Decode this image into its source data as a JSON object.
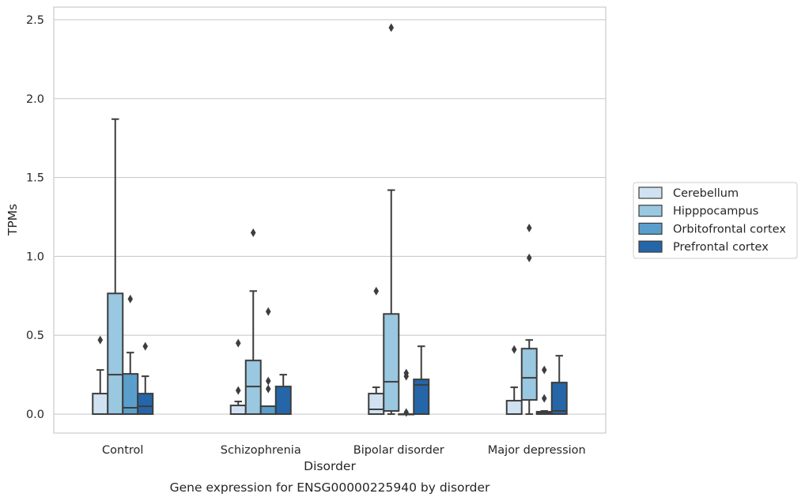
{
  "chart_data": {
    "type": "box",
    "title": "",
    "caption": "Gene expression for ENSG00000225940 by disorder",
    "xlabel": "Disorder",
    "ylabel": "TPMs",
    "ylim": [
      -0.12,
      2.58
    ],
    "yticks": [
      0.0,
      0.5,
      1.0,
      1.5,
      2.0,
      2.5
    ],
    "ytick_labels": [
      "0.0",
      "0.5",
      "1.0",
      "1.5",
      "2.0",
      "2.5"
    ],
    "categories": [
      "Control",
      "Schizophrenia",
      "Bipolar disorder",
      "Major depression"
    ],
    "grid": "horizontal",
    "legend_position": "right",
    "series": [
      {
        "name": "Cerebellum",
        "color": "#d0e2f2",
        "boxes": [
          {
            "min": 0.0,
            "q1": 0.0,
            "median": 0.0,
            "q3": 0.13,
            "max": 0.28,
            "outliers": [
              0.47
            ]
          },
          {
            "min": 0.0,
            "q1": 0.0,
            "median": 0.0,
            "q3": 0.055,
            "max": 0.08,
            "outliers": [
              0.15,
              0.45
            ]
          },
          {
            "min": 0.0,
            "q1": 0.0,
            "median": 0.03,
            "q3": 0.13,
            "max": 0.17,
            "outliers": [
              0.78
            ]
          },
          {
            "min": 0.0,
            "q1": 0.0,
            "median": 0.0,
            "q3": 0.085,
            "max": 0.17,
            "outliers": [
              0.41
            ]
          }
        ]
      },
      {
        "name": "Hipppocampus",
        "color": "#9ac8e0",
        "boxes": [
          {
            "min": 0.0,
            "q1": 0.0,
            "median": 0.25,
            "q3": 0.765,
            "max": 1.87,
            "outliers": []
          },
          {
            "min": 0.0,
            "q1": 0.0,
            "median": 0.175,
            "q3": 0.34,
            "max": 0.78,
            "outliers": [
              1.15
            ]
          },
          {
            "min": 0.0,
            "q1": 0.02,
            "median": 0.205,
            "q3": 0.635,
            "max": 1.42,
            "outliers": [
              2.45
            ]
          },
          {
            "min": 0.0,
            "q1": 0.09,
            "median": 0.23,
            "q3": 0.415,
            "max": 0.47,
            "outliers": [
              0.99,
              1.18
            ]
          }
        ]
      },
      {
        "name": "Orbitofrontal cortex",
        "color": "#5a9fcc",
        "boxes": [
          {
            "min": 0.0,
            "q1": 0.0,
            "median": 0.04,
            "q3": 0.255,
            "max": 0.39,
            "outliers": [
              0.73
            ]
          },
          {
            "min": 0.0,
            "q1": 0.0,
            "median": 0.0,
            "q3": 0.05,
            "max": 0.05,
            "outliers": [
              0.16,
              0.21,
              0.65
            ]
          },
          {
            "min": 0.0,
            "q1": 0.0,
            "median": 0.0,
            "q3": 0.0,
            "max": 0.0,
            "outliers": [
              0.01,
              0.24,
              0.26
            ]
          },
          {
            "min": 0.0,
            "q1": 0.0,
            "median": 0.005,
            "q3": 0.015,
            "max": 0.02,
            "outliers": [
              0.1,
              0.28
            ]
          }
        ]
      },
      {
        "name": "Prefrontal cortex",
        "color": "#2466a8",
        "boxes": [
          {
            "min": 0.0,
            "q1": 0.0,
            "median": 0.05,
            "q3": 0.13,
            "max": 0.24,
            "outliers": [
              0.43
            ]
          },
          {
            "min": 0.0,
            "q1": 0.0,
            "median": 0.0,
            "q3": 0.175,
            "max": 0.25,
            "outliers": []
          },
          {
            "min": 0.0,
            "q1": 0.0,
            "median": 0.185,
            "q3": 0.22,
            "max": 0.43,
            "outliers": []
          },
          {
            "min": 0.0,
            "q1": 0.0,
            "median": 0.02,
            "q3": 0.2,
            "max": 0.37,
            "outliers": []
          }
        ]
      }
    ]
  }
}
